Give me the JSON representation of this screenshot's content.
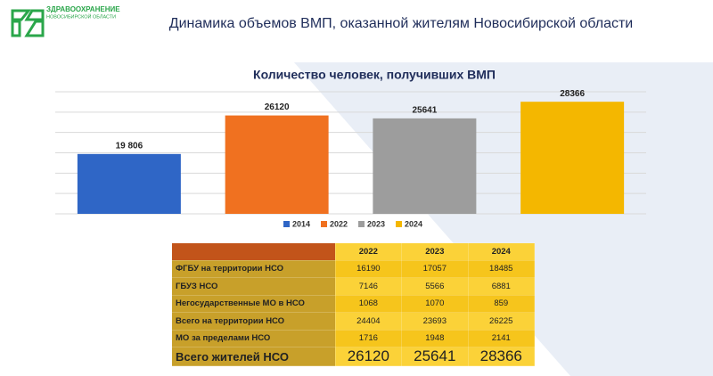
{
  "logo": {
    "line1": "ЗДРАВООХРАНЕНИЕ",
    "line2": "НОВОСИБИРСКОЙ ОБЛАСТИ"
  },
  "header": {
    "title": "Динамика объемов ВМП, оказанной жителям Новосибирской области"
  },
  "chart_data": {
    "type": "bar",
    "title": "Количество человек, получивших ВМП",
    "categories": [
      "2014",
      "2022",
      "2023",
      "2024"
    ],
    "values": [
      19806,
      26120,
      25641,
      28366
    ],
    "value_labels": [
      "19 806",
      "26120",
      "25641",
      "28366"
    ],
    "colors": [
      "#2f66c6",
      "#f07120",
      "#9d9d9d",
      "#f4b700"
    ],
    "ylim": [
      10000,
      30000
    ],
    "grid": true,
    "legend": "bottom"
  },
  "table": {
    "header": [
      "",
      "2022",
      "2023",
      "2024"
    ],
    "rows": [
      [
        "ФГБУ на территории НСО",
        "16190",
        "17057",
        "18485"
      ],
      [
        "ГБУЗ НСО",
        "7146",
        "5566",
        "6881"
      ],
      [
        "Негосударственные МО в НСО",
        "1068",
        "1070",
        "859"
      ],
      [
        "Всего на территории НСО",
        "24404",
        "23693",
        "26225"
      ],
      [
        "МО за пределами НСО",
        "1716",
        "1948",
        "2141"
      ],
      [
        "Всего жителей НСО",
        "26120",
        "25641",
        "28366"
      ]
    ]
  }
}
